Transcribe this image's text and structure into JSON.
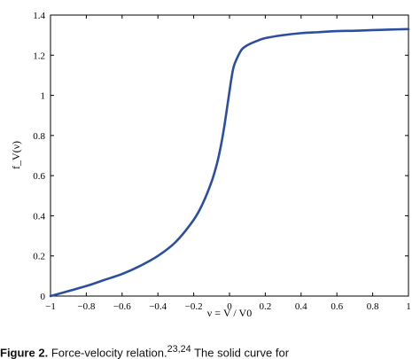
{
  "chart_data": {
    "type": "line",
    "title": "",
    "xlabel": "ν = V / V0",
    "ylabel": "f_V(ν)",
    "xlim": [
      -1,
      1
    ],
    "ylim": [
      0,
      1.4
    ],
    "x_ticks": [
      "−1",
      "−0.8",
      "−0.6",
      "−0.4",
      "−0.2",
      "0",
      "0.2",
      "0.4",
      "0.6",
      "0.8",
      "1"
    ],
    "y_ticks": [
      "0",
      "0.2",
      "0.4",
      "0.6",
      "0.8",
      "1",
      "1.2",
      "1.4"
    ],
    "grid": false,
    "line_color": "#2b4ea2",
    "series": [
      {
        "x": [
          -1.0,
          -0.9,
          -0.8,
          -0.7,
          -0.6,
          -0.5,
          -0.4,
          -0.3,
          -0.2,
          -0.15,
          -0.1,
          -0.07,
          -0.05,
          -0.03,
          -0.01,
          0.0,
          0.01,
          0.02,
          0.03,
          0.05,
          0.07,
          0.1,
          0.15,
          0.2,
          0.3,
          0.4,
          0.5,
          0.6,
          0.7,
          0.8,
          0.9,
          1.0
        ],
        "y": [
          0.0,
          0.025,
          0.05,
          0.08,
          0.11,
          0.15,
          0.2,
          0.27,
          0.38,
          0.46,
          0.57,
          0.66,
          0.74,
          0.84,
          0.96,
          1.02,
          1.08,
          1.13,
          1.16,
          1.2,
          1.23,
          1.25,
          1.27,
          1.285,
          1.3,
          1.31,
          1.315,
          1.32,
          1.322,
          1.325,
          1.328,
          1.33
        ]
      }
    ]
  },
  "caption": {
    "label": "Figure 2.",
    "text": "Force-velocity relation.",
    "ref": "23,24",
    "rest": "The solid curve for"
  }
}
